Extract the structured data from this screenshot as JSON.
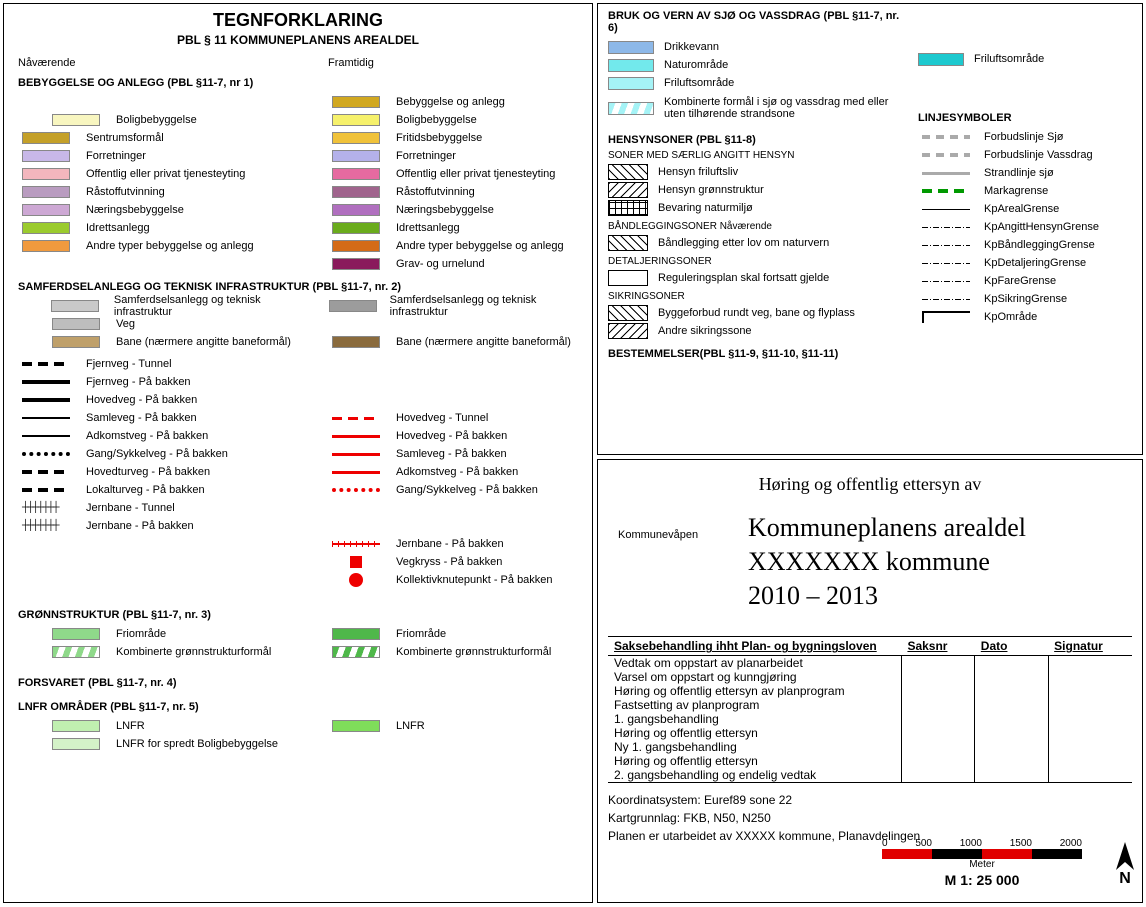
{
  "left": {
    "title": "TEGNFORKLARING",
    "subtitle": "PBL § 11 KOMMUNEPLANENS AREALDEL",
    "col_current": "Nåværende",
    "col_future": "Framtidig",
    "sec1_title": "BEBYGGELSE OG ANLEGG (PBL §11-7, nr 1)",
    "sec1_current": [
      {
        "color": "#f8f6c0",
        "label": "Boligbebyggelse"
      },
      {
        "color": "#c4a029",
        "label": "Sentrumsformål"
      },
      {
        "color": "#c8b8e8",
        "label": "Forretninger"
      },
      {
        "color": "#f3b6bd",
        "label": "Offentlig eller privat tjenesteyting"
      },
      {
        "color": "#b99cc0",
        "label": "Råstoffutvinning"
      },
      {
        "color": "#cda8d4",
        "label": "Næringsbebyggelse"
      },
      {
        "color": "#9bcb2e",
        "label": "Idrettsanlegg"
      },
      {
        "color": "#f09a3e",
        "label": "Andre typer bebyggelse og anlegg"
      }
    ],
    "sec1_future": [
      {
        "color": "#d1a820",
        "label": "Bebyggelse og anlegg"
      },
      {
        "color": "#f6f16b",
        "label": "Boligbebyggelse"
      },
      {
        "color": "#f0c23a",
        "label": "Fritidsbebyggelse"
      },
      {
        "color": "#b4b1ea",
        "label": "Forretninger"
      },
      {
        "color": "#e66aa0",
        "label": "Offentlig eller privat tjenesteyting"
      },
      {
        "color": "#a0648d",
        "label": "Råstoffutvinning"
      },
      {
        "color": "#b06fbf",
        "label": "Næringsbebyggelse"
      },
      {
        "color": "#6aab1c",
        "label": "Idrettsanlegg"
      },
      {
        "color": "#d46b17",
        "label": "Andre typer bebyggelse og anlegg"
      },
      {
        "color": "#8a1a5c",
        "label": "Grav- og urnelund"
      }
    ],
    "sec2_title": "SAMFERDSELANLEGG OG TEKNISK INFRASTRUKTUR (PBL §11-7, nr. 2)",
    "sec2_current_top": [
      {
        "color": "#c9c9c9",
        "label": "Samferdselsanlegg og teknisk infrastruktur"
      },
      {
        "color": "#bdbdbd",
        "label": "Veg"
      },
      {
        "color": "#bfa06a",
        "label": "Bane (nærmere angitte baneformål)"
      }
    ],
    "sec2_future_top": [
      {
        "color": "#9c9c9c",
        "label": "Samferdselsanlegg og teknisk infrastruktur"
      },
      {
        "color": "#8a6b3d",
        "label": "Bane (nærmere angitte baneformål)"
      }
    ],
    "sec2_current_lines": [
      {
        "type": "ldash",
        "label": "Fjernveg - Tunnel"
      },
      {
        "type": "lblk",
        "label": "Fjernveg - På bakken"
      },
      {
        "type": "lblk",
        "label": "Hovedveg - På bakken"
      },
      {
        "type": "lblk2",
        "label": "Samleveg - På bakken"
      },
      {
        "type": "lblk2",
        "label": "Adkomstveg - På bakken"
      },
      {
        "type": "ldot",
        "label": "Gang/Sykkelveg - På bakken"
      },
      {
        "type": "ldash",
        "label": "Hovedturveg - På bakken"
      },
      {
        "type": "ldash",
        "label": "Lokalturveg - På bakken"
      },
      {
        "type": "lcross",
        "text": "┼┼┼┼┼┼┼",
        "label": "Jernbane - Tunnel"
      },
      {
        "type": "lcross",
        "text": "┼┼┼┼┼┼┼",
        "label": "Jernbane - På bakken"
      }
    ],
    "sec2_future_lines": [
      {
        "type": "lreddash",
        "label": "Hovedveg - Tunnel"
      },
      {
        "type": "lred",
        "label": "Hovedveg - På bakken"
      },
      {
        "type": "lred",
        "label": "Samleveg - På bakken"
      },
      {
        "type": "lred",
        "label": "Adkomstveg - På bakken"
      },
      {
        "type": "lreddot",
        "label": "Gang/Sykkelveg - På bakken"
      },
      {
        "type": "rail-red",
        "label": "Jernbane - På bakken"
      },
      {
        "type": "red-sq",
        "label": "Vegkryss - På bakken"
      },
      {
        "type": "red-dot",
        "label": "Kollektivknutepunkt - På bakken"
      }
    ],
    "sec3_title": "GRØNNSTRUKTUR (PBL §11-7, nr. 3)",
    "sec3_current": [
      {
        "color": "#8fd98a",
        "label": "Friområde"
      },
      {
        "stripe_bg": "#8fd98a",
        "label": "Kombinerte grønnstrukturformål"
      }
    ],
    "sec3_future": [
      {
        "color": "#4fb84a",
        "label": "Friområde"
      },
      {
        "stripe_bg": "#4fb84a",
        "label": "Kombinerte grønnstrukturformål"
      }
    ],
    "sec4_title": "FORSVARET (PBL §11-7, nr. 4)",
    "sec5_title": "LNFR OMRÅDER (PBL §11-7, nr. 5)",
    "sec5_current": [
      {
        "color": "#c0efb0",
        "label": "LNFR"
      },
      {
        "color": "#d4f2c8",
        "label": "LNFR for spredt Boligbebyggelse"
      }
    ],
    "sec5_future": [
      {
        "color": "#7fdd5a",
        "label": "LNFR"
      }
    ]
  },
  "tr": {
    "sec6_title": "BRUK OG VERN AV SJØ OG VASSDRAG (PBL §11-7, nr. 6)",
    "sec6_items": [
      {
        "color": "#8db8e8",
        "label": "Drikkevann"
      },
      {
        "color": "#72e9ec",
        "label": "Naturområde"
      },
      {
        "color": "#a5f3f6",
        "label": "Friluftsområde"
      },
      {
        "stripe_bg": "#a5f3f6",
        "label": "Kombinerte formål i sjø og vassdrag med eller uten tilhørende strandsone"
      }
    ],
    "sec6_right": {
      "color": "#1dc9cf",
      "label": "Friluftsområde"
    },
    "hensyn_title": "HENSYNSONER (PBL §11-8)",
    "hensyn_sub1": "SONER MED SÆRLIG ANGITT HENSYN",
    "hensyn_items1": [
      {
        "pattern": "pattern-diag",
        "label": "Hensyn friluftsliv"
      },
      {
        "pattern": "pattern-diag2",
        "label": "Hensyn grønnstruktur"
      },
      {
        "pattern": "pattern-grid",
        "label": "Bevaring naturmiljø"
      }
    ],
    "hensyn_sub2": "BÅNDLEGGINGSONER Nåværende",
    "hensyn_items2": [
      {
        "pattern": "pattern-diag",
        "label": "Båndlegging etter lov om naturvern"
      }
    ],
    "hensyn_sub3": "DETALJERINGSONER",
    "hensyn_items3": [
      {
        "pattern": "",
        "label": "Reguleringsplan skal fortsatt gjelde"
      }
    ],
    "hensyn_sub4": "SIKRINGSONER",
    "hensyn_items4": [
      {
        "pattern": "pattern-diag",
        "label": "Byggeforbud rundt veg, bane og flyplass"
      },
      {
        "pattern": "pattern-diag2",
        "label": "Andre sikringssone"
      }
    ],
    "bestem_title": "BESTEMMELSER(PBL §11-9, §11-10, §11-11)",
    "linje_title": "LINJESYMBOLER",
    "linje_items": [
      {
        "type": "lgreydash",
        "label": "Forbudslinje Sjø"
      },
      {
        "type": "lgreydash",
        "label": "Forbudslinje Vassdrag"
      },
      {
        "type": "lgrey",
        "label": "Strandlinje sjø"
      },
      {
        "type": "lgreen-dash",
        "label": "Markagrense"
      },
      {
        "type": "lthin",
        "label": "KpArealGrense"
      },
      {
        "type": "lthindashdot",
        "label": "KpAngittHensynGrense"
      },
      {
        "type": "lthindashdot",
        "label": "KpBåndleggingGrense"
      },
      {
        "type": "lthindashdot",
        "label": "KpDetaljeringGrense"
      },
      {
        "type": "lthindashdot",
        "label": "KpFareGrense"
      },
      {
        "type": "lthindashdot",
        "label": "KpSikringGrense"
      },
      {
        "type": "lbracket",
        "label": "KpOmråde"
      }
    ]
  },
  "br": {
    "hearing": "Høring og offentlig ettersyn av",
    "kommunevapen": "Kommunevåpen",
    "plan_title_1": "Kommuneplanens arealdel",
    "plan_title_2": "XXXXXXX kommune",
    "plan_title_3": "2010 – 2013",
    "table_header": {
      "col1": "Saksebehandling ihht Plan- og bygningsloven",
      "col2": "Saksnr",
      "col3": "Dato",
      "col4": "Signatur"
    },
    "table_rows": [
      "Vedtak om oppstart av planarbeidet",
      "Varsel om oppstart og kunngjøring",
      "Høring og offentlig ettersyn av planprogram",
      "Fastsetting av planprogram",
      "1. gangsbehandling",
      "Høring og offentlig ettersyn",
      "Ny 1. gangsbehandling",
      "Høring og offentlig ettersyn",
      "2. gangsbehandling og endelig vedtak"
    ],
    "footer_1": "Koordinatsystem: Euref89 sone 22",
    "footer_2": "Kartgrunnlag: FKB, N50, N250",
    "footer_3": "Planen er utarbeidet av XXXXX kommune, Planavdelingen",
    "scale_labels": [
      "0",
      "500",
      "1000",
      "1500",
      "2000"
    ],
    "scale_meter": "Meter",
    "scale_txt": "M 1: 25 000",
    "scale_colors": [
      "#e00000",
      "#000000",
      "#e00000",
      "#000000"
    ],
    "north": "N"
  }
}
